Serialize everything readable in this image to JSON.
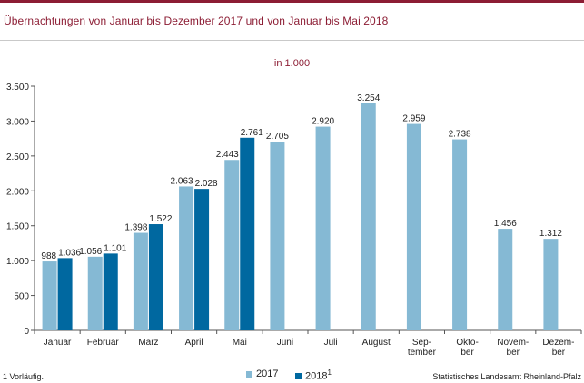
{
  "title": "Übernachtungen  von  Januar  bis  Dezember  2017  und  von  Januar  bis  Mai  2018",
  "subtitle": "in 1.000",
  "footnote": "1 Vorläufig.",
  "source": "Statistisches Landesamt Rheinland-Pfalz",
  "legend": {
    "s1": "2017",
    "s2": "2018",
    "s2_sup": "1"
  },
  "colors": {
    "accent": "#8c1d34",
    "s1": "#85b9d4",
    "s2": "#0068a0"
  },
  "chart_data": {
    "type": "bar",
    "categories": [
      [
        "Januar"
      ],
      [
        "Februar"
      ],
      [
        "März"
      ],
      [
        "April"
      ],
      [
        "Mai"
      ],
      [
        "Juni"
      ],
      [
        "Juli"
      ],
      [
        "August"
      ],
      [
        "Sep-",
        "tember"
      ],
      [
        "Okto-",
        "ber"
      ],
      [
        "Novem-",
        "ber"
      ],
      [
        "Dezem-",
        "ber"
      ]
    ],
    "series": [
      {
        "name": "2017",
        "values": [
          988,
          1056,
          1398,
          2063,
          2443,
          2705,
          2920,
          3254,
          2959,
          2738,
          1456,
          1312
        ],
        "labels": [
          "988",
          "1.056",
          "1.398",
          "2.063",
          "2.443",
          "2.705",
          "2.920",
          "3.254",
          "2.959",
          "2.738",
          "1.456",
          "1.312"
        ]
      },
      {
        "name": "2018",
        "values": [
          1036,
          1101,
          1522,
          2028,
          2761,
          null,
          null,
          null,
          null,
          null,
          null,
          null
        ],
        "labels": [
          "1.036",
          "1.101",
          "1.522",
          "2.028",
          "2.761",
          "",
          "",
          "",
          "",
          "",
          "",
          ""
        ]
      }
    ],
    "ylim": [
      0,
      3500
    ],
    "yticks": [
      0,
      500,
      1000,
      1500,
      2000,
      2500,
      3000,
      3500
    ],
    "ytick_labels": [
      "0",
      "500",
      "1.000",
      "1.500",
      "2.000",
      "2.500",
      "3.000",
      "3.500"
    ],
    "grid": false,
    "legend_position": "bottom-center"
  }
}
